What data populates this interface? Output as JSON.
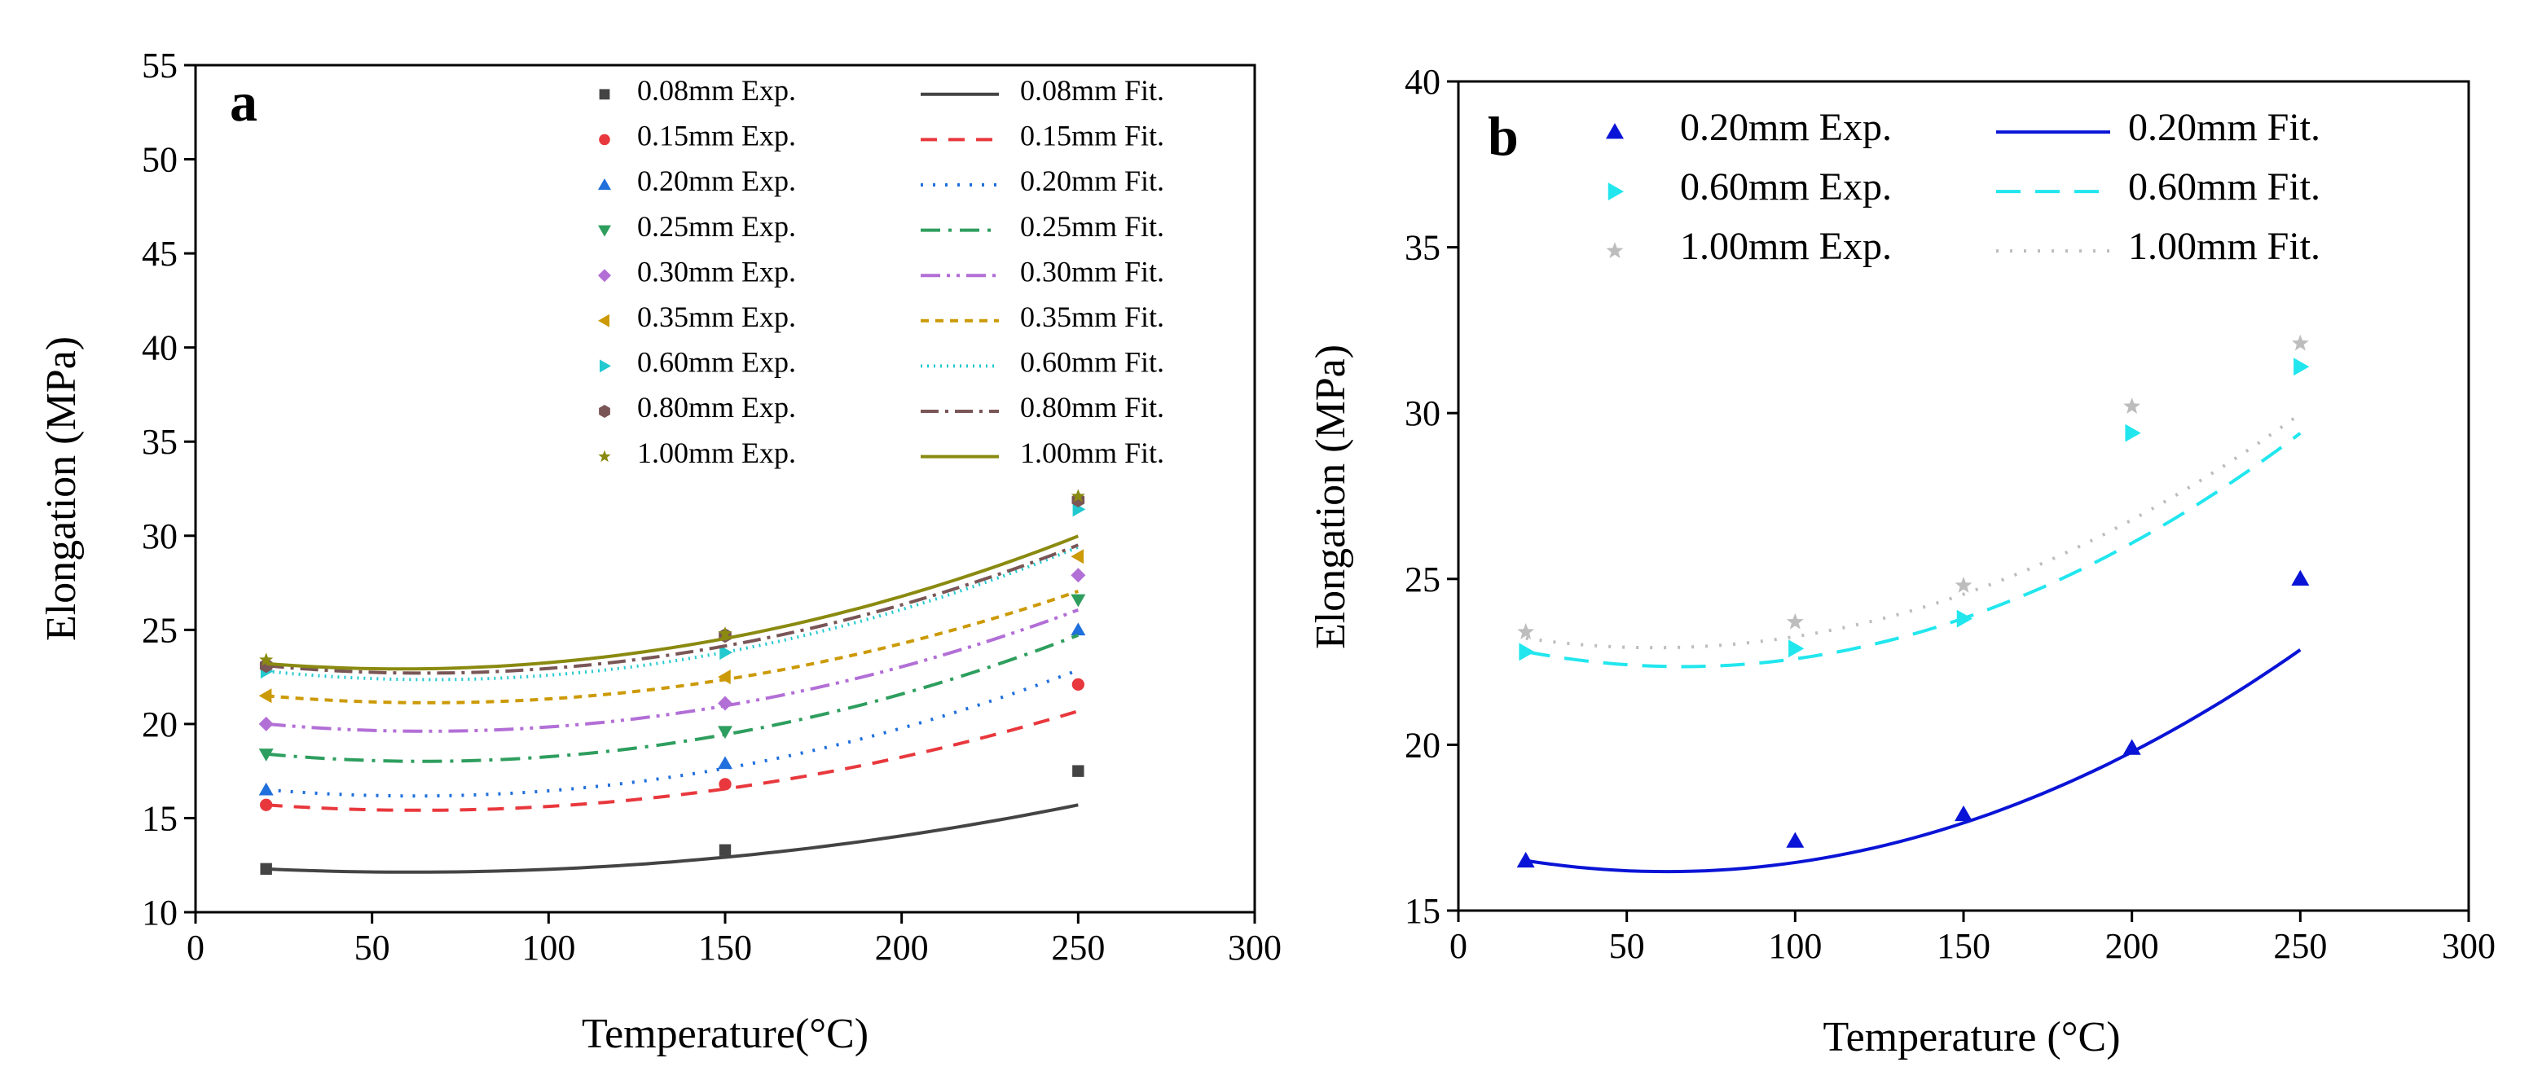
{
  "chart_data": [
    {
      "id": "a",
      "type": "scatter",
      "panel_label": "a",
      "xlabel": "Temperature(°C)",
      "ylabel": "Elongation (MPa)",
      "xlim": [
        0,
        300
      ],
      "ylim": [
        10,
        55
      ],
      "xticks": [
        0,
        50,
        100,
        150,
        200,
        250,
        300
      ],
      "yticks": [
        10,
        15,
        20,
        25,
        30,
        35,
        40,
        45,
        50,
        55
      ],
      "grid": false,
      "legend_position": "top-right",
      "series": [
        {
          "name": "0.08mm",
          "exp_label": "0.08mm Exp.",
          "fit_label": "0.08mm Fit.",
          "color": "#444444",
          "marker": "square",
          "dash": "",
          "x": [
            20,
            150,
            250
          ],
          "y": [
            12.3,
            13.3,
            17.5
          ],
          "fit": [
            0.0001,
            -0.0122,
            12.5
          ]
        },
        {
          "name": "0.15mm",
          "exp_label": "0.15mm Exp.",
          "fit_label": "0.15mm Fit.",
          "color": "#e8383d",
          "marker": "circle",
          "dash": "20,14",
          "x": [
            20,
            150,
            250
          ],
          "y": [
            15.7,
            16.8,
            22.1
          ],
          "fit": [
            0.000151,
            -0.0191,
            16.02
          ]
        },
        {
          "name": "0.20mm",
          "exp_label": "0.20mm Exp.",
          "fit_label": "0.20mm Fit.",
          "color": "#1f6fdc",
          "marker": "triangle-up",
          "dash": "3,12",
          "x": [
            20,
            150,
            250
          ],
          "y": [
            16.5,
            17.9,
            25.0
          ],
          "fit": [
            0.000189,
            -0.0234,
            16.9
          ]
        },
        {
          "name": "0.25mm",
          "exp_label": "0.25mm Exp.",
          "fit_label": "0.25mm Fit.",
          "color": "#2e9e5e",
          "marker": "triangle-down",
          "dash": "24,10,4,10",
          "x": [
            20,
            150,
            250
          ],
          "y": [
            18.4,
            19.6,
            26.6
          ],
          "fit": [
            0.000195,
            -0.0252,
            18.83
          ]
        },
        {
          "name": "0.30mm",
          "exp_label": "0.30mm Exp.",
          "fit_label": "0.30mm Fit.",
          "color": "#b26fd6",
          "marker": "diamond",
          "dash": "24,8,4,8,4,8",
          "x": [
            20,
            150,
            250
          ],
          "y": [
            20.0,
            21.1,
            27.9
          ],
          "fit": [
            0.000189,
            -0.0247,
            20.42
          ]
        },
        {
          "name": "0.35mm",
          "exp_label": "0.35mm Exp.",
          "fit_label": "0.35mm Fit.",
          "color": "#cc9a06",
          "marker": "triangle-left",
          "dash": "10,8",
          "x": [
            20,
            150,
            250
          ],
          "y": [
            21.5,
            22.5,
            28.9
          ],
          "fit": [
            0.000175,
            -0.0231,
            21.89
          ]
        },
        {
          "name": "0.60mm",
          "exp_label": "0.60mm Exp.",
          "fit_label": "0.60mm Fit.",
          "color": "#22c9cf",
          "marker": "triangle-right",
          "dash": "2,6",
          "x": [
            20,
            150,
            250
          ],
          "y": [
            22.8,
            23.8,
            31.4
          ],
          "fit": [
            0.000209,
            -0.0278,
            23.28
          ]
        },
        {
          "name": "0.80mm",
          "exp_label": "0.80mm Exp.",
          "fit_label": "0.80mm Fit.",
          "color": "#7a5656",
          "marker": "hexagon",
          "dash": "22,8,4,8",
          "x": [
            20,
            150,
            250
          ],
          "y": [
            23.1,
            24.7,
            31.9
          ],
          "fit": [
            0.000198,
            -0.0256,
            23.53
          ]
        },
        {
          "name": "1.00mm",
          "exp_label": "1.00mm Exp.",
          "fit_label": "1.00mm Fit.",
          "color": "#8a8a10",
          "marker": "star",
          "dash": "",
          "x": [
            20,
            150,
            250
          ],
          "y": [
            23.4,
            24.8,
            32.1
          ],
          "fit": [
            0.000192,
            -0.0224,
            23.58
          ]
        }
      ]
    },
    {
      "id": "b",
      "type": "scatter",
      "panel_label": "b",
      "xlabel": "Temperature (°C)",
      "ylabel": "Elongation (MPa)",
      "xlim": [
        0,
        300
      ],
      "ylim": [
        15,
        40
      ],
      "xticks": [
        0,
        50,
        100,
        150,
        200,
        250,
        300
      ],
      "yticks": [
        15,
        20,
        25,
        30,
        35,
        40
      ],
      "grid": false,
      "legend_position": "top",
      "series": [
        {
          "name": "0.20mm",
          "exp_label": "0.20mm Exp.",
          "fit_label": "0.20mm Fit.",
          "color": "#0a14d6",
          "marker": "triangle-up",
          "dash": "",
          "x": [
            20,
            100,
            150,
            200,
            250
          ],
          "y": [
            16.5,
            17.1,
            17.9,
            19.9,
            25.0
          ],
          "fit": [
            0.000189,
            -0.0234,
            16.9
          ]
        },
        {
          "name": "0.60mm",
          "exp_label": "0.60mm Exp.",
          "fit_label": "0.60mm Fit.",
          "color": "#22e6ee",
          "marker": "triangle-right",
          "dash": "30,18",
          "x": [
            20,
            100,
            150,
            200,
            250
          ],
          "y": [
            22.8,
            22.9,
            23.8,
            29.4,
            31.4
          ],
          "fit": [
            0.000209,
            -0.0278,
            23.28
          ]
        },
        {
          "name": "1.00mm",
          "exp_label": "1.00mm Exp.",
          "fit_label": "1.00mm Fit.",
          "color": "#bdbdbd",
          "marker": "star",
          "dash": "3,14",
          "x": [
            20,
            100,
            150,
            200,
            250
          ],
          "y": [
            23.4,
            23.7,
            24.8,
            30.2,
            32.1
          ],
          "fit": [
            0.000192,
            -0.0224,
            23.58
          ]
        }
      ]
    }
  ]
}
